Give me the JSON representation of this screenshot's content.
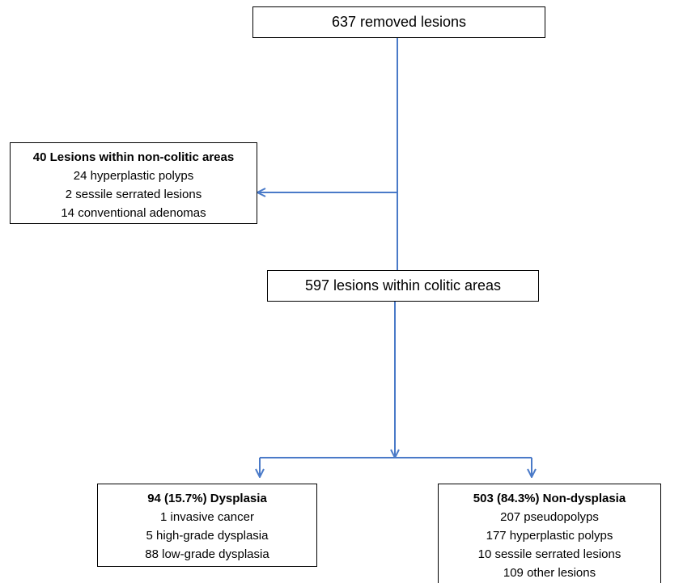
{
  "flowchart": {
    "top": {
      "label": "637 removed lesions"
    },
    "non_colitic": {
      "title": "40 Lesions within non-colitic areas",
      "items": [
        "24  hyperplastic polyps",
        "2 sessile serrated lesions",
        "14 conventional adenomas"
      ]
    },
    "colitic": {
      "label": "597 lesions within colitic areas"
    },
    "dysplasia": {
      "title": "94 (15.7%) Dysplasia",
      "items": [
        "1 invasive cancer",
        "5 high-grade dysplasia",
        "88 low-grade dysplasia"
      ]
    },
    "non_dysplasia": {
      "title": "503 (84.3%) Non-dysplasia",
      "items": [
        "207 pseudopolyps",
        "177 hyperplastic polyps",
        "10 sessile serrated lesions",
        "109 other lesions"
      ]
    }
  },
  "colors": {
    "connector": "#4a7ac8",
    "box_border": "#000000"
  }
}
